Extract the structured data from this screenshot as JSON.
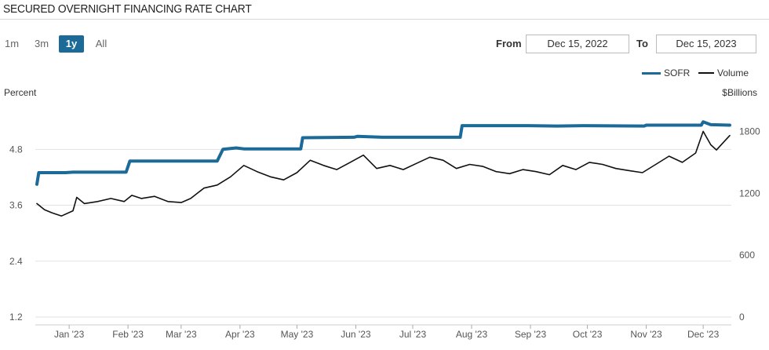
{
  "header": {
    "title": "SECURED OVERNIGHT FINANCING RATE CHART"
  },
  "range_selector": {
    "buttons": [
      {
        "label": "1m",
        "active": false
      },
      {
        "label": "3m",
        "active": false
      },
      {
        "label": "1y",
        "active": true
      },
      {
        "label": "All",
        "active": false
      }
    ]
  },
  "date_range": {
    "from_label": "From",
    "from_value": "Dec 15, 2022",
    "to_label": "To",
    "to_value": "Dec 15, 2023"
  },
  "colors": {
    "sofr": "#1b6a97",
    "volume": "#111111",
    "grid": "#e2e2e2",
    "tick_text": "#555555",
    "active_button": "#1b6a97"
  },
  "chart_data": {
    "type": "line",
    "title": "",
    "left_axis_label": "Percent",
    "right_axis_label": "$Billions",
    "y_left": {
      "ylim": [
        1.2,
        5.85
      ],
      "ticks": [
        "4.8",
        "3.6",
        "2.4",
        "1.2"
      ]
    },
    "y_right": {
      "ylim": [
        0,
        2100
      ],
      "ticks": [
        "1800",
        "1200",
        "600",
        "0"
      ]
    },
    "x_ticks": [
      "Jan '23",
      "Feb '23",
      "Mar '23",
      "Apr '23",
      "May '23",
      "Jun '23",
      "Jul '23",
      "Aug '23",
      "Sep '23",
      "Oct '23",
      "Nov '23",
      "Dec '23"
    ],
    "x_tick_positions": [
      "2023-01-01",
      "2023-02-01",
      "2023-03-01",
      "2023-04-01",
      "2023-05-01",
      "2023-06-01",
      "2023-07-01",
      "2023-08-01",
      "2023-09-01",
      "2023-10-01",
      "2023-11-01",
      "2023-12-01"
    ],
    "x_range": [
      "2022-12-15",
      "2023-12-15"
    ],
    "grid": true,
    "legend_position": "top-right",
    "series": [
      {
        "name": "SOFR",
        "axis": "left",
        "color": "#1b6a97",
        "line_width": 4,
        "points": [
          [
            "2022-12-15",
            4.05
          ],
          [
            "2022-12-16",
            4.3
          ],
          [
            "2022-12-30",
            4.3
          ],
          [
            "2023-01-03",
            4.31
          ],
          [
            "2023-01-31",
            4.31
          ],
          [
            "2023-02-02",
            4.55
          ],
          [
            "2023-03-20",
            4.55
          ],
          [
            "2023-03-23",
            4.8
          ],
          [
            "2023-03-30",
            4.83
          ],
          [
            "2023-04-03",
            4.81
          ],
          [
            "2023-05-03",
            4.81
          ],
          [
            "2023-05-04",
            5.05
          ],
          [
            "2023-05-31",
            5.06
          ],
          [
            "2023-06-02",
            5.08
          ],
          [
            "2023-06-15",
            5.06
          ],
          [
            "2023-07-26",
            5.06
          ],
          [
            "2023-07-27",
            5.31
          ],
          [
            "2023-08-31",
            5.31
          ],
          [
            "2023-09-15",
            5.3
          ],
          [
            "2023-09-29",
            5.31
          ],
          [
            "2023-10-31",
            5.3
          ],
          [
            "2023-11-01",
            5.32
          ],
          [
            "2023-11-30",
            5.32
          ],
          [
            "2023-12-01",
            5.39
          ],
          [
            "2023-12-05",
            5.33
          ],
          [
            "2023-12-15",
            5.32
          ]
        ]
      },
      {
        "name": "Volume",
        "axis": "right",
        "color": "#111111",
        "line_width": 1.6,
        "points": [
          [
            "2022-12-15",
            1100
          ],
          [
            "2022-12-19",
            1040
          ],
          [
            "2022-12-23",
            1010
          ],
          [
            "2022-12-28",
            980
          ],
          [
            "2023-01-03",
            1030
          ],
          [
            "2023-01-05",
            1160
          ],
          [
            "2023-01-09",
            1100
          ],
          [
            "2023-01-16",
            1120
          ],
          [
            "2023-01-23",
            1150
          ],
          [
            "2023-01-30",
            1120
          ],
          [
            "2023-02-03",
            1180
          ],
          [
            "2023-02-08",
            1150
          ],
          [
            "2023-02-15",
            1170
          ],
          [
            "2023-02-22",
            1120
          ],
          [
            "2023-03-01",
            1110
          ],
          [
            "2023-03-06",
            1150
          ],
          [
            "2023-03-13",
            1250
          ],
          [
            "2023-03-20",
            1280
          ],
          [
            "2023-03-27",
            1360
          ],
          [
            "2023-04-03",
            1470
          ],
          [
            "2023-04-10",
            1410
          ],
          [
            "2023-04-17",
            1360
          ],
          [
            "2023-04-24",
            1330
          ],
          [
            "2023-05-01",
            1400
          ],
          [
            "2023-05-08",
            1520
          ],
          [
            "2023-05-15",
            1470
          ],
          [
            "2023-05-22",
            1430
          ],
          [
            "2023-05-29",
            1500
          ],
          [
            "2023-06-05",
            1570
          ],
          [
            "2023-06-12",
            1440
          ],
          [
            "2023-06-19",
            1470
          ],
          [
            "2023-06-26",
            1430
          ],
          [
            "2023-07-03",
            1490
          ],
          [
            "2023-07-10",
            1550
          ],
          [
            "2023-07-17",
            1520
          ],
          [
            "2023-07-24",
            1440
          ],
          [
            "2023-07-31",
            1480
          ],
          [
            "2023-08-07",
            1460
          ],
          [
            "2023-08-14",
            1410
          ],
          [
            "2023-08-21",
            1390
          ],
          [
            "2023-08-28",
            1430
          ],
          [
            "2023-09-04",
            1410
          ],
          [
            "2023-09-11",
            1380
          ],
          [
            "2023-09-18",
            1470
          ],
          [
            "2023-09-25",
            1430
          ],
          [
            "2023-10-02",
            1500
          ],
          [
            "2023-10-09",
            1480
          ],
          [
            "2023-10-16",
            1440
          ],
          [
            "2023-10-23",
            1420
          ],
          [
            "2023-10-30",
            1400
          ],
          [
            "2023-11-06",
            1480
          ],
          [
            "2023-11-13",
            1560
          ],
          [
            "2023-11-20",
            1500
          ],
          [
            "2023-11-27",
            1590
          ],
          [
            "2023-12-01",
            1800
          ],
          [
            "2023-12-05",
            1670
          ],
          [
            "2023-12-08",
            1620
          ],
          [
            "2023-12-12",
            1700
          ],
          [
            "2023-12-15",
            1760
          ]
        ]
      }
    ]
  }
}
